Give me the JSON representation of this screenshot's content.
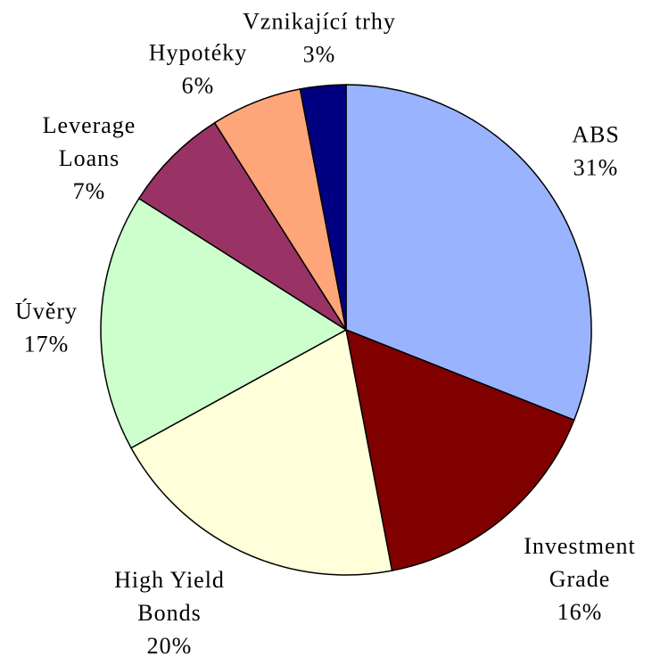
{
  "chart_data": {
    "type": "pie",
    "categories": [
      [
        "ABS"
      ],
      [
        "Investment",
        "Grade"
      ],
      [
        "High Yield",
        "Bonds"
      ],
      [
        "Úvěry"
      ],
      [
        "Leverage",
        "Loans"
      ],
      [
        "Hypotéky"
      ],
      [
        "Vznikající trhy"
      ]
    ],
    "values": [
      31,
      16,
      20,
      17,
      7,
      6,
      3
    ],
    "value_labels": [
      "31%",
      "16%",
      "20%",
      "17%",
      "7%",
      "6%",
      "3%"
    ],
    "colors": [
      "#99b3ff",
      "#800000",
      "#ffffd9",
      "#ccffcc",
      "#993366",
      "#ffa57a",
      "#000080"
    ]
  }
}
